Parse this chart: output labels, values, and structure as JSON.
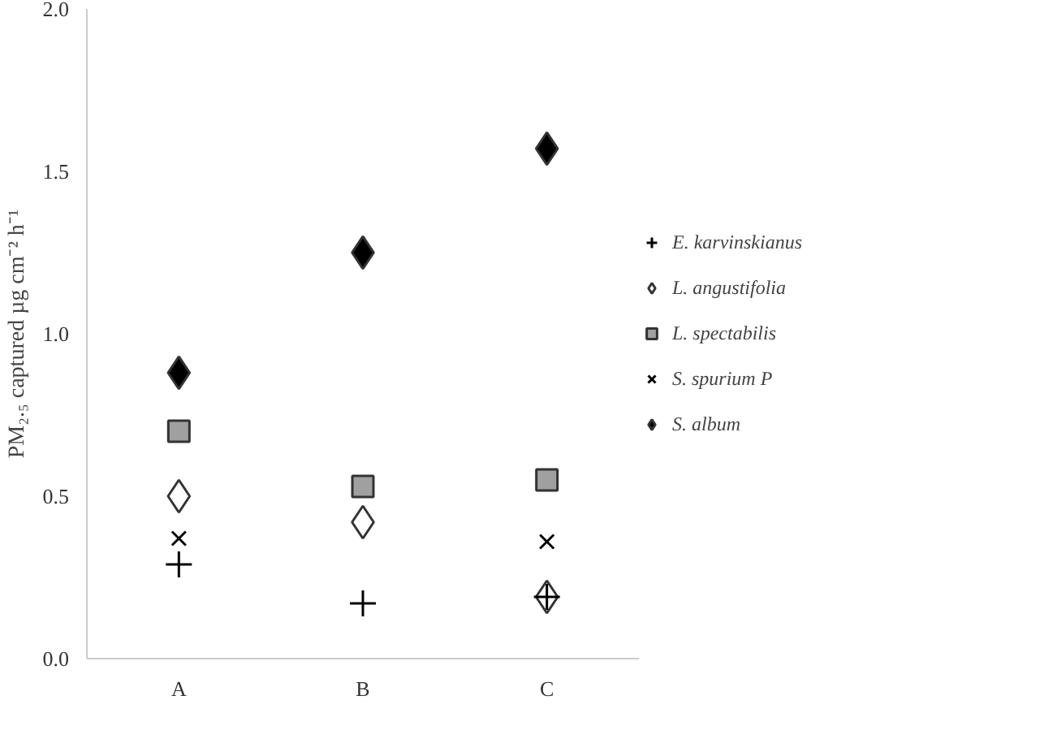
{
  "chart_data": {
    "type": "scatter",
    "ylabel": "PM₂.₅ captured µg cm⁻² h⁻¹",
    "categories": [
      "A",
      "B",
      "C"
    ],
    "ylim": [
      0,
      2.0
    ],
    "yticks": [
      {
        "value": 0,
        "label": "0.0"
      },
      {
        "value": 0.5,
        "label": "0.5"
      },
      {
        "value": 1.0,
        "label": "1.0"
      },
      {
        "value": 1.5,
        "label": "1.5"
      },
      {
        "value": 2.0,
        "label": "2.0"
      }
    ],
    "legend": "right",
    "series": [
      {
        "name": "E. karvinskianus",
        "marker": "cross",
        "color": "#000000",
        "values": [
          0.29,
          0.17,
          0.19
        ]
      },
      {
        "name": "L. angustifolia",
        "marker": "diamond",
        "color": "#ffffff",
        "values": [
          0.5,
          0.42,
          0.19
        ]
      },
      {
        "name": "L. spectabilis",
        "marker": "square",
        "color": "#a0a0a0",
        "values": [
          0.7,
          0.53,
          0.55
        ]
      },
      {
        "name": "S. spurium P",
        "marker": "x",
        "color": "#000000",
        "values": [
          0.37,
          null,
          0.36
        ]
      },
      {
        "name": "S. album",
        "marker": "diamond",
        "color": "#000000",
        "values": [
          0.88,
          1.25,
          1.57
        ]
      }
    ]
  }
}
